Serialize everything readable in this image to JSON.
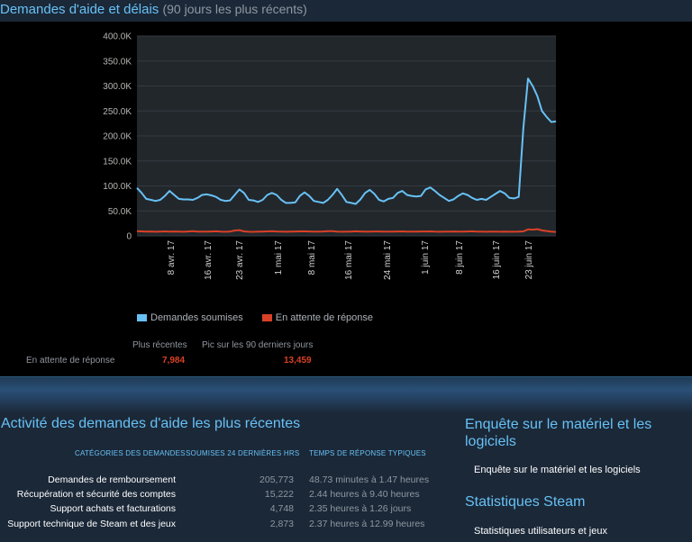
{
  "header": {
    "title": "Demandes d'aide et délais",
    "subtitle": "(90 jours les plus récents)"
  },
  "colors": {
    "accent": "#67c1f5",
    "series_submitted": "#67c1f5",
    "series_pending": "#d94126"
  },
  "chart_data": {
    "type": "line",
    "ylim": [
      0,
      400000
    ],
    "y_tick_labels": [
      "0",
      "50.0K",
      "100.0K",
      "150.0K",
      "200.0K",
      "250.0K",
      "300.0K",
      "350.0K",
      "400.0K"
    ],
    "x_tick_labels": [
      "8 avr. 17",
      "16 avr. 17",
      "23 avr. 17",
      "1 mai 17",
      "8 mai 17",
      "16 mai 17",
      "24 mai 17",
      "1 juin 17",
      "8 juin 17",
      "16 juin 17",
      "23 juin 17"
    ],
    "series": [
      {
        "name": "Demandes soumises",
        "values": [
          96000,
          86000,
          74000,
          72000,
          70000,
          72000,
          80000,
          90000,
          82000,
          74000,
          73000,
          73000,
          72000,
          76000,
          82000,
          83000,
          81000,
          78000,
          72000,
          70000,
          71000,
          82000,
          93000,
          86000,
          72000,
          71000,
          68000,
          72000,
          82000,
          86000,
          82000,
          72000,
          66000,
          66000,
          67000,
          80000,
          87000,
          80000,
          70000,
          68000,
          66000,
          72000,
          82000,
          94000,
          82000,
          68000,
          66000,
          64000,
          73000,
          86000,
          92000,
          84000,
          72000,
          69000,
          74000,
          76000,
          86000,
          90000,
          82000,
          80000,
          79000,
          80000,
          93000,
          97000,
          90000,
          82000,
          76000,
          70000,
          73000,
          80000,
          85000,
          82000,
          76000,
          72000,
          74000,
          72000,
          78000,
          84000,
          90000,
          85000,
          76000,
          75000,
          78000,
          215000,
          315000,
          300000,
          280000,
          250000,
          238000,
          228000,
          229000
        ],
        "color": "#67c1f5"
      },
      {
        "name": "En attente de réponse",
        "values": [
          9500,
          9000,
          8500,
          8800,
          8200,
          8600,
          9000,
          8400,
          8800,
          8600,
          8300,
          8900,
          9400,
          8700,
          8400,
          8600,
          8800,
          9100,
          8500,
          8300,
          8700,
          10800,
          11500,
          9000,
          8200,
          8100,
          8600,
          8400,
          9000,
          9600,
          8900,
          8400,
          8200,
          8600,
          8800,
          9000,
          9200,
          8800,
          8500,
          8400,
          8800,
          9600,
          9300,
          8600,
          8300,
          8400,
          8700,
          9100,
          8800,
          8500,
          8600,
          8900,
          8800,
          8500,
          8700,
          8600,
          8800,
          9000,
          8500,
          8400,
          8600,
          8800,
          8900,
          9000,
          8500,
          8300,
          8400,
          8700,
          8900,
          8600,
          8400,
          8800,
          9200,
          8700,
          8400,
          8200,
          8600,
          8500,
          8300,
          8400,
          8300,
          8200,
          8400,
          9000,
          13000,
          12500,
          13459,
          11000,
          9800,
          8700,
          7984
        ],
        "color": "#d94126"
      }
    ],
    "legend_position": "bottom-left",
    "grid": true
  },
  "stats": {
    "col_latest": "Plus récentes",
    "col_peak": "Pic sur les 90 derniers jours",
    "row_label": "En attente de réponse",
    "latest_value": "7,984",
    "peak_value": "13,459"
  },
  "activity": {
    "title": "Activité des demandes d'aide les plus récentes",
    "headers": {
      "category": "CATÉGORIES DES DEMANDES",
      "submitted": "SOUMISES 24 DERNIÈRES HRS",
      "response": "TEMPS DE RÉPONSE TYPIQUES"
    },
    "rows": [
      {
        "category": "Demandes de remboursement",
        "count": "205,773",
        "time": "48.73 minutes à 1.47 heures"
      },
      {
        "category": "Récupération et sécurité des comptes",
        "count": "15,222",
        "time": "2.44 heures à 9.40 heures"
      },
      {
        "category": "Support achats et facturations",
        "count": "4,748",
        "time": "2.35 heures à 1.26 jours"
      },
      {
        "category": "Support technique de Steam et des jeux",
        "count": "2,873",
        "time": "2.37 heures à 12.99 heures"
      }
    ]
  },
  "sidebar": {
    "survey_title": "Enquête sur le matériel et les logiciels",
    "survey_link": "Enquête sur le matériel et les logiciels",
    "steam_stats_title": "Statistiques Steam",
    "steam_stats_link": "Statistiques utilisateurs et jeux"
  }
}
